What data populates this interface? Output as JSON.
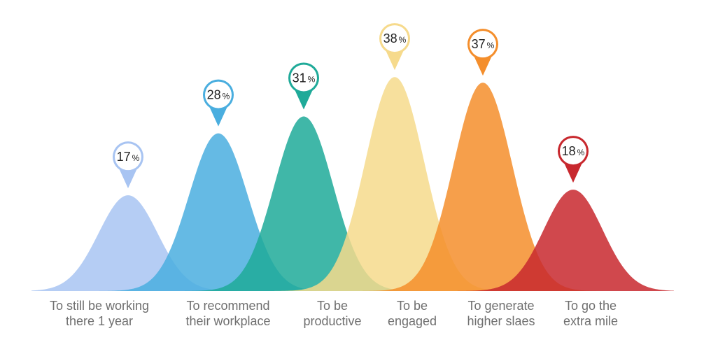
{
  "chart_data": {
    "type": "area",
    "unit": "%",
    "series": [
      {
        "label": [
          "To still be working",
          "there 1 year"
        ],
        "value": 17,
        "color": "#a8c4f2"
      },
      {
        "label": [
          "To recommend",
          "their workplace"
        ],
        "value": 28,
        "color": "#4aaedf"
      },
      {
        "label": [
          "To be",
          "productive"
        ],
        "value": 31,
        "color": "#1faa99"
      },
      {
        "label": [
          "To be",
          "engaged"
        ],
        "value": 38,
        "color": "#f6da8c"
      },
      {
        "label": [
          "To generate",
          "higher slaes"
        ],
        "value": 37,
        "color": "#f48e2c"
      },
      {
        "label": [
          "To go the",
          "extra mile"
        ],
        "value": 18,
        "color": "#c8282e"
      }
    ]
  }
}
